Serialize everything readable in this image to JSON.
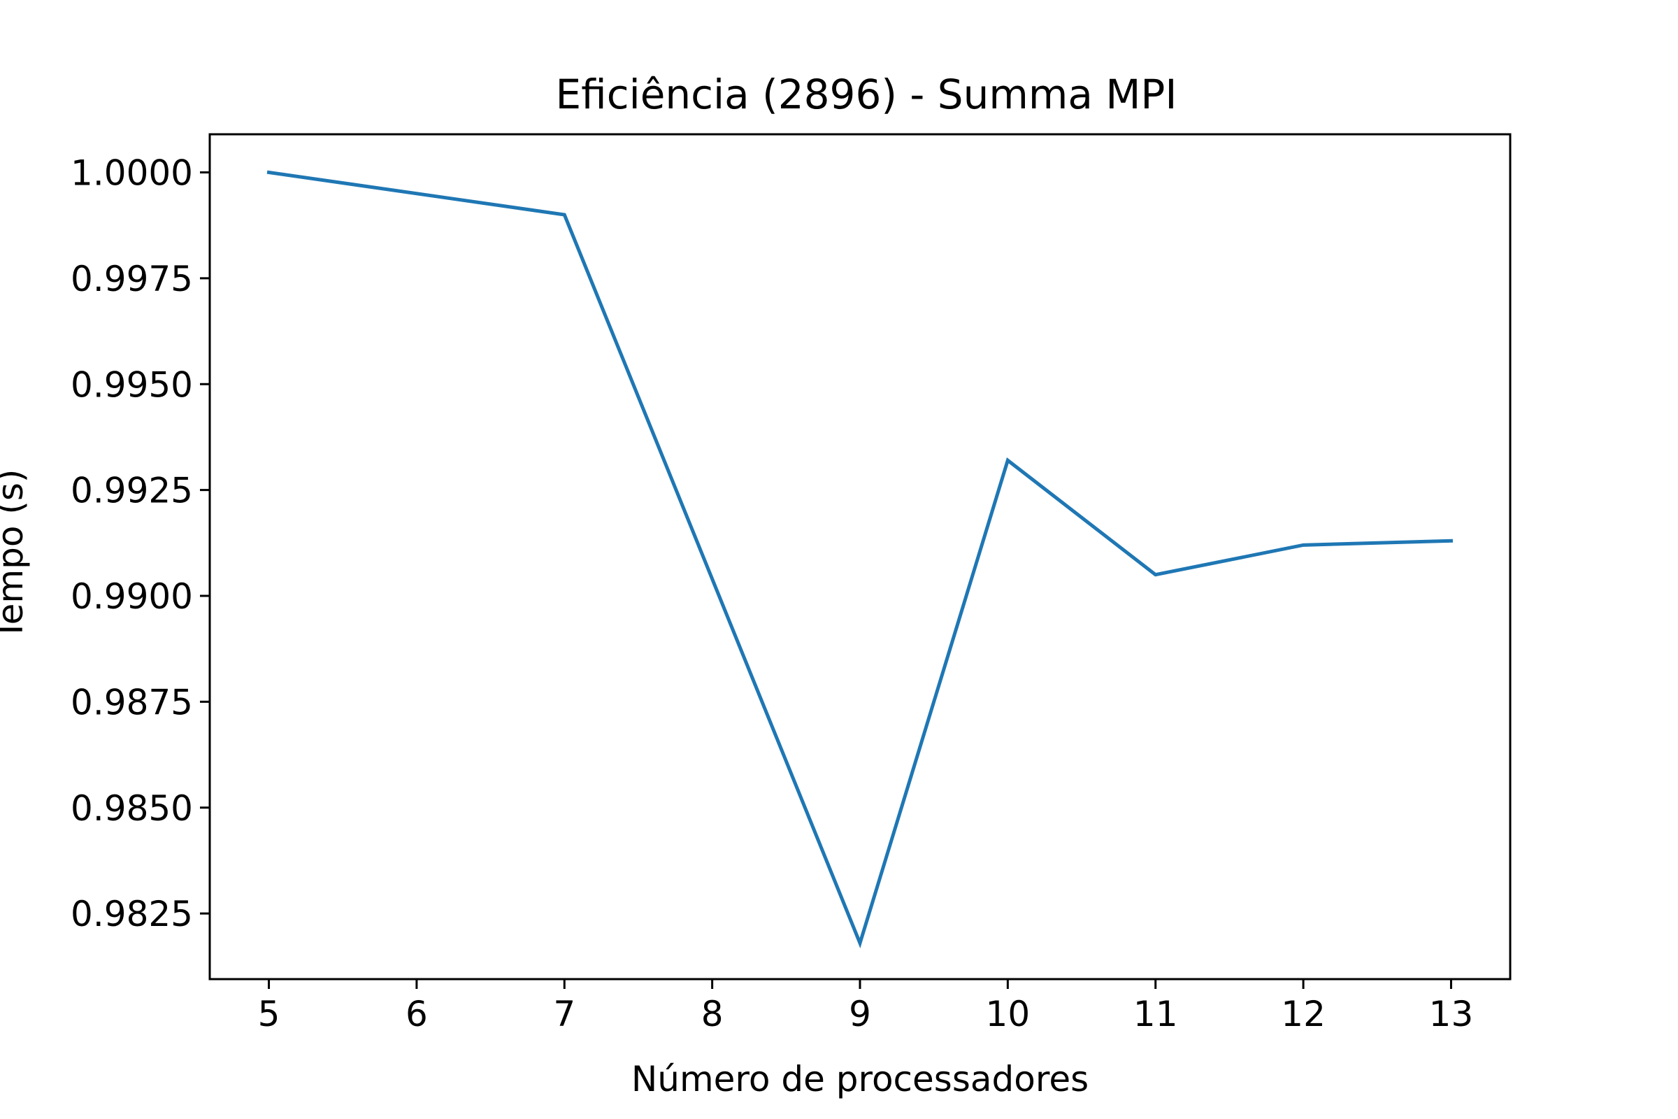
{
  "chart_data": {
    "type": "line",
    "title": "Eficiência (2896) - Summa MPI",
    "xlabel": "Número de processadores",
    "ylabel": "Tempo (s)",
    "x": [
      5,
      7,
      9,
      10,
      11,
      12,
      13
    ],
    "series": [
      {
        "values": [
          1.0,
          0.999,
          0.9818,
          0.9932,
          0.9905,
          0.9912,
          0.9913
        ],
        "color": "#1f77b4"
      }
    ],
    "xticks": [
      5,
      6,
      7,
      8,
      9,
      10,
      11,
      12,
      13
    ],
    "xtick_labels": [
      "5",
      "6",
      "7",
      "8",
      "9",
      "10",
      "11",
      "12",
      "13"
    ],
    "yticks": [
      0.9825,
      0.985,
      0.9875,
      0.99,
      0.9925,
      0.995,
      0.9975,
      1.0
    ],
    "ytick_labels": [
      "0.9825",
      "0.9850",
      "0.9875",
      "0.9900",
      "0.9925",
      "0.9950",
      "0.9975",
      "1.0000"
    ],
    "xlim": [
      4.6,
      13.4
    ],
    "ylim": [
      0.98095,
      1.0009
    ],
    "grid": false,
    "legend": "none"
  }
}
